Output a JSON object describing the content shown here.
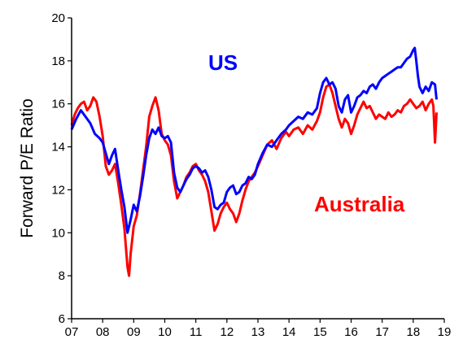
{
  "chart_data": {
    "type": "line",
    "title": "",
    "ylabel": "Forward P/E Ratio",
    "xlabel": "",
    "x_ticks": [
      "07",
      "08",
      "09",
      "10",
      "11",
      "12",
      "13",
      "14",
      "15",
      "16",
      "17",
      "18",
      "19"
    ],
    "y_ticks": [
      6,
      8,
      10,
      12,
      14,
      16,
      18,
      20
    ],
    "xlim": [
      2007.0,
      2019.0
    ],
    "ylim": [
      6,
      20
    ],
    "grid": false,
    "legend": "labels placed inside plot area",
    "series": [
      {
        "name": "US",
        "color": "#0000ff",
        "points": [
          [
            2007.0,
            14.8
          ],
          [
            2007.15,
            15.3
          ],
          [
            2007.3,
            15.7
          ],
          [
            2007.45,
            15.4
          ],
          [
            2007.6,
            15.1
          ],
          [
            2007.75,
            14.6
          ],
          [
            2007.9,
            14.4
          ],
          [
            2008.0,
            14.2
          ],
          [
            2008.1,
            13.7
          ],
          [
            2008.2,
            13.2
          ],
          [
            2008.3,
            13.6
          ],
          [
            2008.4,
            13.9
          ],
          [
            2008.5,
            12.9
          ],
          [
            2008.6,
            12.0
          ],
          [
            2008.7,
            11.2
          ],
          [
            2008.8,
            10.0
          ],
          [
            2008.9,
            10.6
          ],
          [
            2009.0,
            11.3
          ],
          [
            2009.1,
            11.0
          ],
          [
            2009.2,
            11.7
          ],
          [
            2009.3,
            12.6
          ],
          [
            2009.4,
            13.6
          ],
          [
            2009.5,
            14.4
          ],
          [
            2009.6,
            14.8
          ],
          [
            2009.7,
            14.6
          ],
          [
            2009.8,
            14.9
          ],
          [
            2009.9,
            14.5
          ],
          [
            2010.0,
            14.4
          ],
          [
            2010.1,
            14.5
          ],
          [
            2010.2,
            14.2
          ],
          [
            2010.3,
            12.8
          ],
          [
            2010.4,
            12.1
          ],
          [
            2010.5,
            11.9
          ],
          [
            2010.6,
            12.2
          ],
          [
            2010.7,
            12.5
          ],
          [
            2010.8,
            12.7
          ],
          [
            2010.9,
            13.0
          ],
          [
            2011.0,
            13.1
          ],
          [
            2011.1,
            13.0
          ],
          [
            2011.2,
            12.8
          ],
          [
            2011.3,
            12.9
          ],
          [
            2011.4,
            12.6
          ],
          [
            2011.5,
            12.0
          ],
          [
            2011.6,
            11.2
          ],
          [
            2011.7,
            11.1
          ],
          [
            2011.8,
            11.3
          ],
          [
            2011.9,
            11.4
          ],
          [
            2012.0,
            11.9
          ],
          [
            2012.1,
            12.1
          ],
          [
            2012.2,
            12.2
          ],
          [
            2012.3,
            11.8
          ],
          [
            2012.4,
            11.9
          ],
          [
            2012.5,
            12.2
          ],
          [
            2012.6,
            12.3
          ],
          [
            2012.7,
            12.6
          ],
          [
            2012.8,
            12.5
          ],
          [
            2012.9,
            12.7
          ],
          [
            2013.0,
            13.2
          ],
          [
            2013.15,
            13.7
          ],
          [
            2013.3,
            14.1
          ],
          [
            2013.45,
            14.0
          ],
          [
            2013.6,
            14.3
          ],
          [
            2013.75,
            14.6
          ],
          [
            2013.9,
            14.8
          ],
          [
            2014.0,
            15.0
          ],
          [
            2014.15,
            15.2
          ],
          [
            2014.3,
            15.4
          ],
          [
            2014.45,
            15.3
          ],
          [
            2014.6,
            15.6
          ],
          [
            2014.75,
            15.5
          ],
          [
            2014.9,
            15.8
          ],
          [
            2015.0,
            16.5
          ],
          [
            2015.1,
            17.0
          ],
          [
            2015.2,
            17.2
          ],
          [
            2015.3,
            16.9
          ],
          [
            2015.4,
            17.0
          ],
          [
            2015.5,
            16.7
          ],
          [
            2015.6,
            15.9
          ],
          [
            2015.7,
            15.6
          ],
          [
            2015.8,
            16.2
          ],
          [
            2015.9,
            16.4
          ],
          [
            2016.0,
            15.6
          ],
          [
            2016.1,
            15.9
          ],
          [
            2016.2,
            16.3
          ],
          [
            2016.3,
            16.4
          ],
          [
            2016.4,
            16.6
          ],
          [
            2016.5,
            16.5
          ],
          [
            2016.6,
            16.8
          ],
          [
            2016.7,
            16.9
          ],
          [
            2016.8,
            16.7
          ],
          [
            2016.9,
            17.0
          ],
          [
            2017.0,
            17.2
          ],
          [
            2017.1,
            17.3
          ],
          [
            2017.2,
            17.4
          ],
          [
            2017.3,
            17.5
          ],
          [
            2017.4,
            17.6
          ],
          [
            2017.5,
            17.7
          ],
          [
            2017.6,
            17.7
          ],
          [
            2017.7,
            17.9
          ],
          [
            2017.8,
            18.1
          ],
          [
            2017.9,
            18.2
          ],
          [
            2018.0,
            18.5
          ],
          [
            2018.05,
            18.6
          ],
          [
            2018.1,
            18.0
          ],
          [
            2018.15,
            17.3
          ],
          [
            2018.2,
            16.8
          ],
          [
            2018.3,
            16.5
          ],
          [
            2018.4,
            16.8
          ],
          [
            2018.5,
            16.6
          ],
          [
            2018.6,
            17.0
          ],
          [
            2018.7,
            16.9
          ],
          [
            2018.75,
            16.2
          ]
        ]
      },
      {
        "name": "Australia",
        "color": "#ff0000",
        "points": [
          [
            2007.0,
            15.0
          ],
          [
            2007.1,
            15.5
          ],
          [
            2007.2,
            15.8
          ],
          [
            2007.3,
            16.0
          ],
          [
            2007.4,
            16.1
          ],
          [
            2007.5,
            15.7
          ],
          [
            2007.6,
            15.9
          ],
          [
            2007.7,
            16.3
          ],
          [
            2007.8,
            16.1
          ],
          [
            2007.9,
            15.4
          ],
          [
            2008.0,
            14.5
          ],
          [
            2008.1,
            13.1
          ],
          [
            2008.2,
            12.7
          ],
          [
            2008.3,
            12.9
          ],
          [
            2008.4,
            13.2
          ],
          [
            2008.5,
            12.3
          ],
          [
            2008.6,
            11.3
          ],
          [
            2008.7,
            10.2
          ],
          [
            2008.8,
            8.4
          ],
          [
            2008.85,
            8.0
          ],
          [
            2008.9,
            9.0
          ],
          [
            2009.0,
            10.3
          ],
          [
            2009.1,
            10.8
          ],
          [
            2009.2,
            11.8
          ],
          [
            2009.3,
            12.9
          ],
          [
            2009.4,
            14.0
          ],
          [
            2009.5,
            15.4
          ],
          [
            2009.6,
            15.9
          ],
          [
            2009.7,
            16.3
          ],
          [
            2009.8,
            15.7
          ],
          [
            2009.9,
            14.6
          ],
          [
            2010.0,
            14.3
          ],
          [
            2010.1,
            14.1
          ],
          [
            2010.2,
            13.6
          ],
          [
            2010.3,
            12.4
          ],
          [
            2010.4,
            11.6
          ],
          [
            2010.5,
            11.9
          ],
          [
            2010.6,
            12.2
          ],
          [
            2010.7,
            12.6
          ],
          [
            2010.8,
            12.8
          ],
          [
            2010.9,
            13.1
          ],
          [
            2011.0,
            13.2
          ],
          [
            2011.1,
            12.9
          ],
          [
            2011.2,
            12.7
          ],
          [
            2011.3,
            12.4
          ],
          [
            2011.4,
            11.9
          ],
          [
            2011.5,
            11.0
          ],
          [
            2011.6,
            10.1
          ],
          [
            2011.7,
            10.4
          ],
          [
            2011.8,
            10.9
          ],
          [
            2011.9,
            11.2
          ],
          [
            2012.0,
            11.4
          ],
          [
            2012.1,
            11.1
          ],
          [
            2012.2,
            10.9
          ],
          [
            2012.3,
            10.5
          ],
          [
            2012.4,
            10.9
          ],
          [
            2012.5,
            11.5
          ],
          [
            2012.6,
            12.0
          ],
          [
            2012.7,
            12.4
          ],
          [
            2012.8,
            12.6
          ],
          [
            2012.9,
            12.8
          ],
          [
            2013.0,
            13.1
          ],
          [
            2013.15,
            13.6
          ],
          [
            2013.3,
            14.1
          ],
          [
            2013.45,
            14.3
          ],
          [
            2013.6,
            13.9
          ],
          [
            2013.75,
            14.4
          ],
          [
            2013.9,
            14.7
          ],
          [
            2014.0,
            14.5
          ],
          [
            2014.15,
            14.8
          ],
          [
            2014.3,
            14.9
          ],
          [
            2014.45,
            14.6
          ],
          [
            2014.6,
            15.0
          ],
          [
            2014.75,
            14.8
          ],
          [
            2014.9,
            15.2
          ],
          [
            2015.0,
            15.6
          ],
          [
            2015.1,
            16.3
          ],
          [
            2015.2,
            16.8
          ],
          [
            2015.3,
            16.9
          ],
          [
            2015.4,
            16.5
          ],
          [
            2015.5,
            15.9
          ],
          [
            2015.6,
            15.3
          ],
          [
            2015.7,
            14.9
          ],
          [
            2015.8,
            15.3
          ],
          [
            2015.9,
            15.1
          ],
          [
            2016.0,
            14.6
          ],
          [
            2016.1,
            15.0
          ],
          [
            2016.2,
            15.5
          ],
          [
            2016.3,
            15.8
          ],
          [
            2016.4,
            16.1
          ],
          [
            2016.5,
            15.8
          ],
          [
            2016.6,
            15.9
          ],
          [
            2016.7,
            15.6
          ],
          [
            2016.8,
            15.3
          ],
          [
            2016.9,
            15.5
          ],
          [
            2017.0,
            15.4
          ],
          [
            2017.1,
            15.3
          ],
          [
            2017.2,
            15.6
          ],
          [
            2017.3,
            15.4
          ],
          [
            2017.4,
            15.5
          ],
          [
            2017.5,
            15.7
          ],
          [
            2017.6,
            15.6
          ],
          [
            2017.7,
            15.9
          ],
          [
            2017.8,
            16.0
          ],
          [
            2017.9,
            16.2
          ],
          [
            2018.0,
            16.0
          ],
          [
            2018.1,
            15.8
          ],
          [
            2018.2,
            15.9
          ],
          [
            2018.3,
            16.1
          ],
          [
            2018.4,
            15.7
          ],
          [
            2018.5,
            16.0
          ],
          [
            2018.6,
            16.2
          ],
          [
            2018.65,
            15.9
          ],
          [
            2018.7,
            14.2
          ],
          [
            2018.75,
            15.6
          ]
        ]
      }
    ]
  },
  "series_labels": {
    "us": "US",
    "australia": "Australia"
  }
}
